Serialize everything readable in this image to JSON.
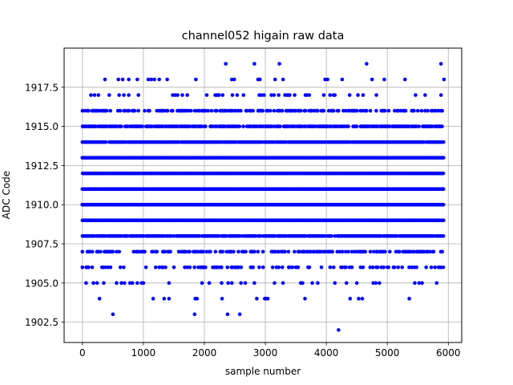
{
  "chart_data": {
    "type": "scatter",
    "title": "channel052 higain raw data",
    "xlabel": "sample number",
    "ylabel": "ADC Code",
    "xlim": [
      -300,
      6220
    ],
    "ylim": [
      1901.2,
      1920.0
    ],
    "x_ticks": [
      0,
      1000,
      2000,
      3000,
      4000,
      5000,
      6000
    ],
    "x_tick_labels": [
      "0",
      "1000",
      "2000",
      "3000",
      "4000",
      "5000",
      "6000"
    ],
    "y_ticks": [
      1902.5,
      1905.0,
      1907.5,
      1910.0,
      1912.5,
      1915.0,
      1917.5
    ],
    "y_tick_labels": [
      "1902.5",
      "1905.0",
      "1907.5",
      "1910.0",
      "1912.5",
      "1915.0",
      "1917.5"
    ],
    "grid": true,
    "marker_color": "#0000ff",
    "marker": "circle",
    "x_range": [
      0,
      5930
    ],
    "levels": [
      {
        "y": 1902,
        "x": [
          4200
        ]
      },
      {
        "y": 1903,
        "x": [
          500,
          1840,
          2380,
          2580
        ]
      },
      {
        "y": 1904,
        "x": [
          280,
          1160,
          1340,
          1420,
          1850,
          1880,
          2290,
          2860,
          2990,
          3010,
          3040,
          3650,
          4390,
          4530,
          4590,
          5360
        ]
      },
      {
        "y": 1905,
        "x": [
          60,
          180,
          240,
          350,
          560,
          640,
          690,
          780,
          820,
          900,
          970,
          1420,
          2080,
          2390,
          2450,
          2600,
          2670,
          2820,
          3150,
          3290,
          3580,
          3610,
          3770,
          4140,
          4330,
          4500,
          4770,
          4810,
          4870,
          5450,
          5520,
          5570,
          5810
        ],
        "sparse": 0.012
      },
      {
        "y": 1906,
        "x": [],
        "sparse": 0.35
      },
      {
        "y": 1907,
        "x": [],
        "sparse": 0.5
      },
      {
        "y": 1908,
        "x": [],
        "dense": 0.92
      },
      {
        "y": 1909,
        "x": [],
        "dense": 1.0
      },
      {
        "y": 1910,
        "x": [],
        "dense": 1.0
      },
      {
        "y": 1911,
        "x": [],
        "dense": 1.0
      },
      {
        "y": 1912,
        "x": [],
        "dense": 1.0
      },
      {
        "y": 1913,
        "x": [],
        "dense": 1.0
      },
      {
        "y": 1914,
        "x": [],
        "dense": 0.97
      },
      {
        "y": 1915,
        "x": [],
        "dense": 0.8
      },
      {
        "y": 1916,
        "x": [],
        "sparse": 0.55
      },
      {
        "y": 1917,
        "x": [],
        "sparse": 0.14
      },
      {
        "y": 1918,
        "x": [
          370,
          590,
          660,
          760,
          900,
          1080,
          1130,
          1180,
          1260,
          1390,
          1860,
          2450,
          2490,
          2880,
          2910,
          3160,
          3290,
          3980,
          4020,
          4260,
          4750,
          4950,
          5290,
          5930
        ]
      },
      {
        "y": 1919,
        "x": [
          2350,
          2820,
          3230,
          4660,
          5880
        ]
      }
    ]
  }
}
